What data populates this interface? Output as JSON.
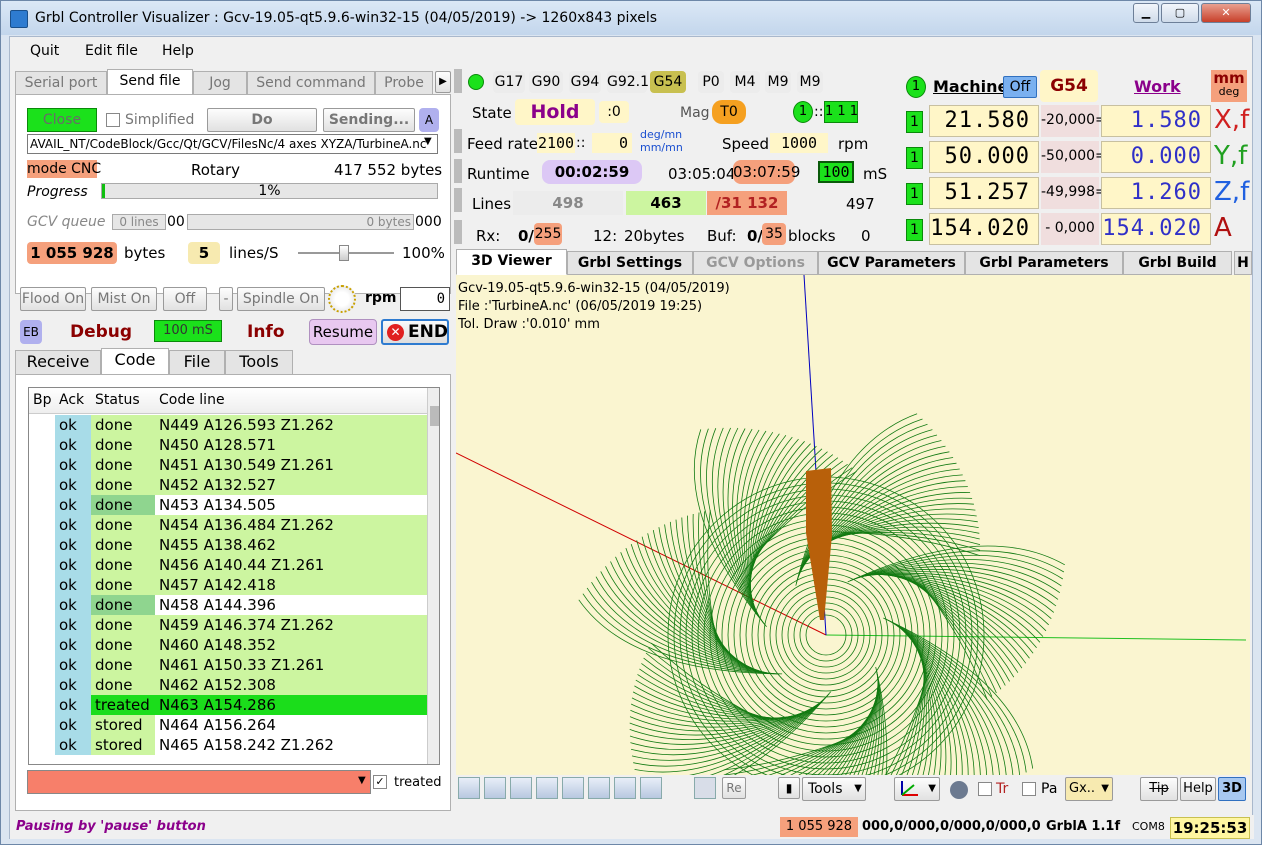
{
  "window": {
    "title": "Grbl Controller Visualizer : Gcv-19.05-qt5.9.6-win32-15 (04/05/2019)  -> 1260x843 pixels"
  },
  "menu": {
    "items": [
      "Quit",
      "Edit file",
      "Help"
    ]
  },
  "left_tabs": [
    "Serial port",
    "Send file",
    "Jog",
    "Send command",
    "Probe"
  ],
  "send": {
    "close_label": "Close",
    "simplified_label": "Simplified",
    "do_label": "Do",
    "sending_label": "Sending...",
    "a_label": "A",
    "file_path": "AVAIL_NT/CodeBlock/Gcc/Qt/GCV/FilesNc/4 axes XYZA/TurbineA.nc",
    "mode": "mode CNC",
    "rotary": "Rotary",
    "file_bytes": "417 552 bytes",
    "progress_label": "Progress",
    "progress_text": "1%",
    "progress": 0.01,
    "queue_label": "GCV queue",
    "queue_lines": "0 lines",
    "queue_lines_num": "00",
    "queue_bytes": "0 bytes",
    "queue_bytes_num": "000",
    "bytes_count": "1 055 928",
    "bytes_label": "bytes",
    "lines_per_s": "5",
    "lines_per_s_label": "lines/S",
    "speed_pct": "100%"
  },
  "controls": {
    "flood": "Flood On",
    "mist": "Mist On",
    "off": "Off",
    "minus": "-",
    "spindle": "Spindle On",
    "rpm": "rpm",
    "rpm_value": "0",
    "eb": "EB",
    "debug": "Debug",
    "interval": "100 mS",
    "info": "Info",
    "resume": "Resume",
    "end": "END"
  },
  "sub_tabs": [
    "Receive",
    "Code",
    "File",
    "Tools"
  ],
  "code_table": {
    "headers": [
      "Bp",
      "Ack",
      "Status",
      "Code line"
    ],
    "rows": [
      {
        "ack": "ok",
        "status": "done",
        "line": "N449 A126.593 Z1.262"
      },
      {
        "ack": "ok",
        "status": "done",
        "line": "N450 A128.571"
      },
      {
        "ack": "ok",
        "status": "done",
        "line": "N451 A130.549 Z1.261"
      },
      {
        "ack": "ok",
        "status": "done",
        "line": "N452 A132.527"
      },
      {
        "ack": "ok",
        "status": "done",
        "line": "N453 A134.505"
      },
      {
        "ack": "ok",
        "status": "done",
        "line": "N454 A136.484 Z1.262"
      },
      {
        "ack": "ok",
        "status": "done",
        "line": "N455 A138.462"
      },
      {
        "ack": "ok",
        "status": "done",
        "line": "N456 A140.44 Z1.261"
      },
      {
        "ack": "ok",
        "status": "done",
        "line": "N457 A142.418"
      },
      {
        "ack": "ok",
        "status": "done",
        "line": "N458 A144.396"
      },
      {
        "ack": "ok",
        "status": "done",
        "line": "N459 A146.374 Z1.262"
      },
      {
        "ack": "ok",
        "status": "done",
        "line": "N460 A148.352"
      },
      {
        "ack": "ok",
        "status": "done",
        "line": "N461 A150.33 Z1.261"
      },
      {
        "ack": "ok",
        "status": "done",
        "line": "N462 A152.308"
      },
      {
        "ack": "ok",
        "status": "treated",
        "line": "N463 A154.286"
      },
      {
        "ack": "ok",
        "status": "stored",
        "line": "N464 A156.264"
      },
      {
        "ack": "ok",
        "status": "stored",
        "line": "N465 A158.242 Z1.262"
      }
    ]
  },
  "treated_label": "treated",
  "modal": {
    "codes": [
      "G17",
      "G90",
      "G94",
      "G92.1",
      "G54",
      "P0",
      "M4",
      "M9",
      "M9"
    ]
  },
  "state": {
    "label": "State",
    "value": "Hold",
    "sub": ":0",
    "mag": "Mag",
    "tool": "T0",
    "one": "1",
    "bits": "1 1 1"
  },
  "feed": {
    "label": "Feed rates",
    "value": "2100",
    "sep": "::",
    "value2": "0",
    "unit1": "deg/mn",
    "unit2": "mm/mn",
    "speed_label": "Speed",
    "speed_value": "1000",
    "rpm": "rpm"
  },
  "runtime": {
    "label": "Runtime",
    "elapsed": "00:02:59",
    "total": "03:05:04",
    "remaining": "03:07:59",
    "ms_value": "100",
    "ms": "mS"
  },
  "lines": {
    "label": "Lines",
    "a": "498",
    "b": "463",
    "c": "/31 132",
    "d": "497"
  },
  "rx": {
    "label": "Rx:",
    "rx_value": "0/",
    "rx_max": "255",
    "n12": "12:",
    "bytes": "20bytes",
    "buf": "Buf:",
    "buf_value": "0/",
    "buf_max": "35",
    "blocks": "blocks",
    "zero": "0"
  },
  "coords": {
    "one": "1",
    "machine": "Machine",
    "off": "Off",
    "g54": "G54",
    "work": "Work",
    "mm": "mm",
    "deg": "deg",
    "rows": [
      {
        "mach": "21.580",
        "offset": "-20,000=",
        "work": "1.580",
        "axis": "X,f"
      },
      {
        "mach": "50.000",
        "offset": "-50,000=",
        "work": "0.000",
        "axis": "Y,f"
      },
      {
        "mach": "51.257",
        "offset": "-49,998=",
        "work": "1.260",
        "axis": "Z,f"
      },
      {
        "mach": "154.020",
        "offset": "- 0,000 =",
        "work": "154.020",
        "axis": "A"
      }
    ]
  },
  "viewer_tabs": [
    "3D Viewer",
    "Grbl Settings",
    "GCV Options",
    "GCV Parameters",
    "Grbl Parameters",
    "Grbl Build",
    "H"
  ],
  "viewer_info": [
    "Gcv-19.05-qt5.9.6-win32-15 (04/05/2019)",
    "File :'TurbineA.nc' (06/05/2019 19:25)",
    "Tol. Draw :'0.010' mm"
  ],
  "toolbar": {
    "re": "Re",
    "tools": "Tools",
    "tr": "Tr",
    "pa": "Pa",
    "gx": "Gx..",
    "tip": "Tip",
    "help": "Help",
    "three_d": "3D"
  },
  "status": {
    "message": "Pausing by 'pause' button",
    "bytes": "1 055 928",
    "coords": "000,0/000,0/000,0/000,0",
    "version": "GrblA 1.1f",
    "port": "COM8",
    "time": "19:25:53"
  },
  "colors": {
    "green": "#1be11b",
    "salmon": "#f5a07c",
    "pale_yellow": "#fff6c8",
    "rowgreen": "#ccf5a0",
    "mesh": "#127a12"
  }
}
